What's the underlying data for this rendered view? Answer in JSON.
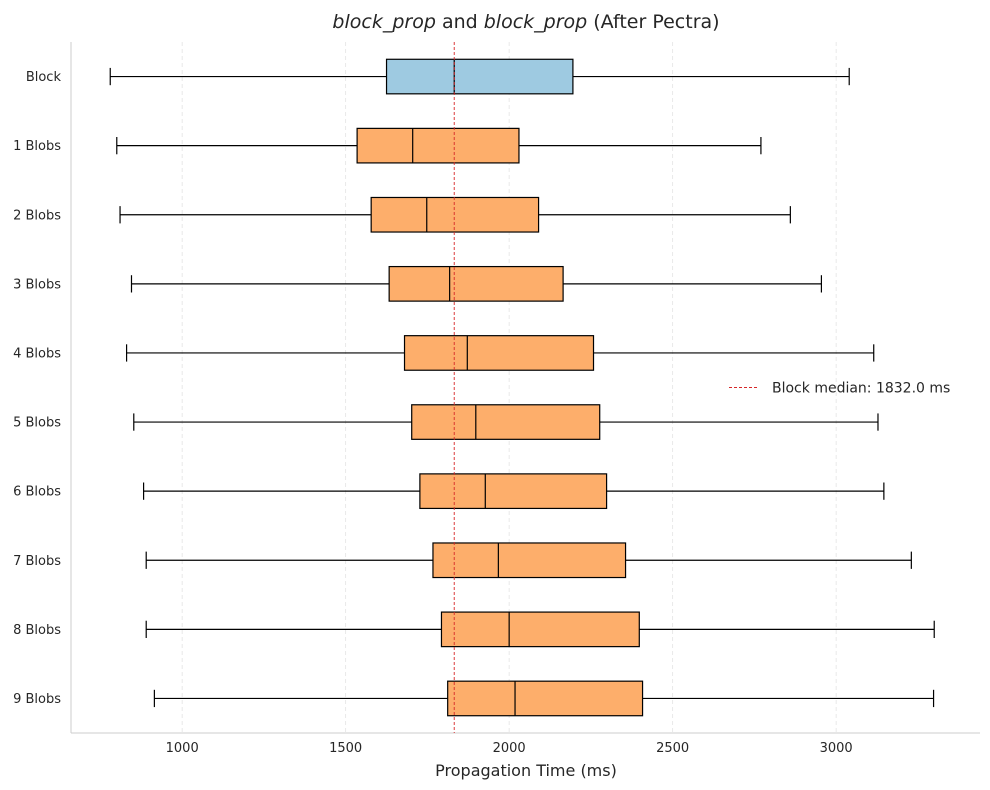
{
  "chart_data": {
    "type": "box",
    "orientation": "horizontal",
    "title": {
      "italic_a": "block_prop",
      "middle": " and ",
      "italic_b": "block_prop",
      "suffix": " (After Pectra)"
    },
    "xlabel": "Propagation Time (ms)",
    "ylabel": "",
    "xlim": [
      660,
      3440
    ],
    "xticks": [
      1000,
      1500,
      2000,
      2500,
      3000
    ],
    "grid": {
      "x": true,
      "y": false,
      "style": "dashed"
    },
    "reference_line": {
      "value": 1832.0,
      "color": "#d62728",
      "style": "dashed"
    },
    "legend": {
      "position": "center-right",
      "entries": [
        "Block median: 1832.0 ms"
      ]
    },
    "colors": {
      "block": "#9ecae1",
      "blobs": "#fdae6b",
      "edge": "#000000"
    },
    "categories": [
      "Block",
      "1 Blobs",
      "2 Blobs",
      "3 Blobs",
      "4 Blobs",
      "5 Blobs",
      "6 Blobs",
      "7 Blobs",
      "8 Blobs",
      "9 Blobs"
    ],
    "boxes": [
      {
        "label": "Block",
        "whislo": 780,
        "q1": 1625,
        "med": 1832,
        "q3": 2195,
        "whishi": 3040,
        "group": "block"
      },
      {
        "label": "1 Blobs",
        "whislo": 800,
        "q1": 1535,
        "med": 1705,
        "q3": 2030,
        "whishi": 2770,
        "group": "blobs"
      },
      {
        "label": "2 Blobs",
        "whislo": 810,
        "q1": 1578,
        "med": 1748,
        "q3": 2090,
        "whishi": 2860,
        "group": "blobs"
      },
      {
        "label": "3 Blobs",
        "whislo": 845,
        "q1": 1633,
        "med": 1818,
        "q3": 2165,
        "whishi": 2955,
        "group": "blobs"
      },
      {
        "label": "4 Blobs",
        "whislo": 830,
        "q1": 1680,
        "med": 1872,
        "q3": 2258,
        "whishi": 3115,
        "group": "blobs"
      },
      {
        "label": "5 Blobs",
        "whislo": 852,
        "q1": 1702,
        "med": 1898,
        "q3": 2277,
        "whishi": 3128,
        "group": "blobs"
      },
      {
        "label": "6 Blobs",
        "whislo": 882,
        "q1": 1727,
        "med": 1927,
        "q3": 2298,
        "whishi": 3146,
        "group": "blobs"
      },
      {
        "label": "7 Blobs",
        "whislo": 890,
        "q1": 1767,
        "med": 1967,
        "q3": 2356,
        "whishi": 3230,
        "group": "blobs"
      },
      {
        "label": "8 Blobs",
        "whislo": 890,
        "q1": 1793,
        "med": 2000,
        "q3": 2398,
        "whishi": 3300,
        "group": "blobs"
      },
      {
        "label": "9 Blobs",
        "whislo": 915,
        "q1": 1812,
        "med": 2018,
        "q3": 2408,
        "whishi": 3298,
        "group": "blobs"
      }
    ]
  }
}
